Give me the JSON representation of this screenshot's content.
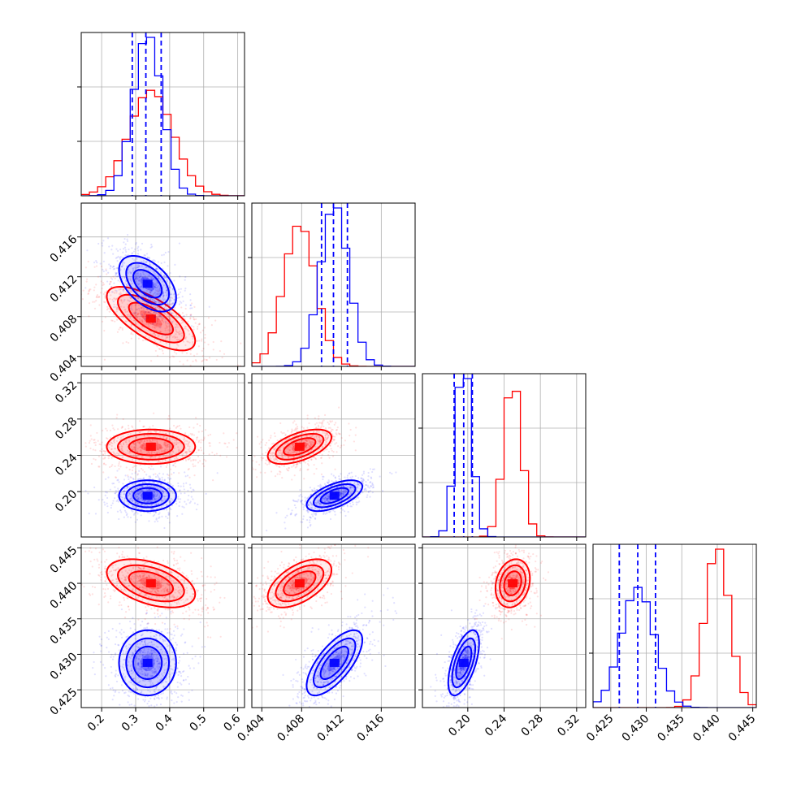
{
  "chart_data": {
    "type": "corner",
    "parameters": 4,
    "grid": true,
    "series": [
      {
        "color": "#ff0000",
        "means": [
          0.345,
          0.4078,
          0.2495,
          0.44
        ],
        "sds": [
          0.065,
          0.0016,
          0.0095,
          0.0017
        ]
      },
      {
        "color": "#0000ff",
        "means": [
          0.335,
          0.4113,
          0.1955,
          0.4288
        ],
        "sds": [
          0.042,
          0.0014,
          0.0085,
          0.0023
        ]
      }
    ],
    "correlations": [
      {
        "pair": [
          0,
          1
        ],
        "red": -0.7,
        "blue": -0.5
      },
      {
        "pair": [
          0,
          2
        ],
        "red": 0.0,
        "blue": 0.0
      },
      {
        "pair": [
          1,
          2
        ],
        "red": 0.55,
        "blue": 0.6
      },
      {
        "pair": [
          0,
          3
        ],
        "red": -0.45,
        "blue": 0.0
      },
      {
        "pair": [
          1,
          3
        ],
        "red": 0.55,
        "blue": 0.7
      },
      {
        "pair": [
          2,
          3
        ],
        "red": 0.2,
        "blue": 0.6
      }
    ],
    "quantile_lines": {
      "color": "#0000ff",
      "values": [
        [
          0.29,
          0.33,
          0.375
        ],
        [
          0.41,
          0.4112,
          0.4126
        ],
        [
          0.185,
          0.1955,
          0.205
        ],
        [
          0.4262,
          0.4288,
          0.4313
        ]
      ]
    },
    "axes": [
      {
        "range": [
          0.14,
          0.62
        ],
        "ticks": [
          "0.2",
          "0.3",
          "0.4",
          "0.5",
          "0.6"
        ],
        "tick_values": [
          0.2,
          0.3,
          0.4,
          0.5,
          0.6
        ]
      },
      {
        "range": [
          0.403,
          0.4194
        ],
        "ticks": [
          "0.404",
          "0.408",
          "0.412",
          "0.416"
        ],
        "tick_values": [
          0.404,
          0.408,
          0.412,
          0.416
        ]
      },
      {
        "range": [
          0.15,
          0.33
        ],
        "ticks": [
          "0.20",
          "0.24",
          "0.28",
          "0.32"
        ],
        "tick_values": [
          0.2,
          0.24,
          0.28,
          0.32
        ]
      },
      {
        "range": [
          0.4225,
          0.4455
        ],
        "ticks": [
          "0.425",
          "0.430",
          "0.435",
          "0.440",
          "0.445"
        ],
        "tick_values": [
          0.425,
          0.43,
          0.435,
          0.44,
          0.445
        ]
      }
    ]
  }
}
